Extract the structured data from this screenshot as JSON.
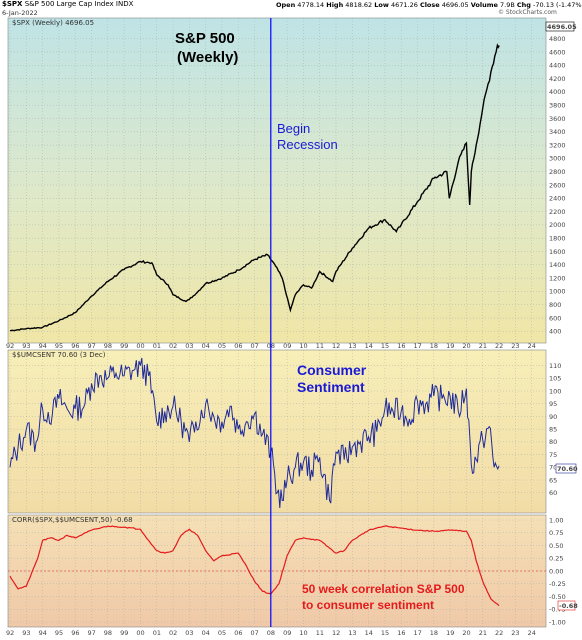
{
  "header": {
    "symbol": "$SPX",
    "name": "S&P 500 Large Cap Index",
    "exchange": "INDX",
    "date": "6-Jan-2022",
    "open_label": "Open",
    "open": "4778.14",
    "high_label": "High",
    "high": "4818.62",
    "low_label": "Low",
    "low": "4671.26",
    "close_label": "Close",
    "close": "4696.05",
    "volume_label": "Volume",
    "volume": "7.9B",
    "chg_label": "Chg",
    "chg": "-70.13 (-1.47%)",
    "credit": "© StockCharts.com"
  },
  "colors": {
    "price_line": "#000000",
    "sentiment_line": "#1f2a9a",
    "corr_line": "#e41a1c",
    "recession_line": "#0000ff",
    "title_blue": "#1a1ad6",
    "corr_text": "#e41a1c"
  },
  "annotations": {
    "title_line1": "S&P 500",
    "title_line2": "(Weekly)",
    "recession_line1": "Begin",
    "recession_line2": "Recession",
    "sentiment_line1": "Consumer",
    "sentiment_line2": "Sentiment",
    "corr_line1": "50 week correlation S&P 500",
    "corr_line2": "to consumer sentiment"
  },
  "chart_data": [
    {
      "type": "line",
      "panel": "price",
      "legend": "$SPX (Weekly) 4696.05",
      "last_value_label": "4696.05",
      "ylim": [
        300,
        4900
      ],
      "yticks": [
        400,
        600,
        800,
        1000,
        1200,
        1400,
        1600,
        1800,
        2000,
        2200,
        2400,
        2600,
        2800,
        3000,
        3200,
        3400,
        3600,
        3800,
        4000,
        4200,
        4400,
        4600,
        4800
      ],
      "series": [
        {
          "x": [
            1992,
            1993,
            1994,
            1995,
            1996,
            1997,
            1998,
            1999,
            2000,
            2000.7,
            2001,
            2001.7,
            2002,
            2002.8,
            2003,
            2003.5,
            2004,
            2005,
            2006,
            2007,
            2007.8,
            2008.3,
            2008.7,
            2009.2,
            2009.5,
            2010,
            2010.5,
            2011,
            2011.8,
            2012,
            2013,
            2014,
            2015,
            2015.7,
            2016,
            2017,
            2018,
            2018.8,
            2018.95,
            2019.5,
            2020,
            2020.2,
            2020.3,
            2020.6,
            2021,
            2021.5,
            2021.9,
            2022.02
          ],
          "y": [
            410,
            440,
            460,
            560,
            680,
            930,
            1150,
            1330,
            1450,
            1430,
            1250,
            1100,
            950,
            850,
            880,
            990,
            1120,
            1200,
            1320,
            1480,
            1550,
            1380,
            1200,
            720,
            950,
            1100,
            1050,
            1300,
            1150,
            1300,
            1650,
            1950,
            2080,
            1900,
            2000,
            2350,
            2700,
            2800,
            2400,
            2950,
            3230,
            2300,
            2800,
            3200,
            3750,
            4300,
            4700,
            4696
          ]
        }
      ]
    },
    {
      "type": "line",
      "panel": "sentiment",
      "legend": "$$UMCSENT 70.60 (3 Dec)",
      "last_value_label": "70.60",
      "ylim": [
        54,
        113
      ],
      "yticks": [
        60,
        65,
        70,
        75,
        80,
        85,
        90,
        95,
        100,
        105,
        110
      ],
      "series": [
        {
          "x": [
            1992,
            1992.5,
            1993,
            1993.6,
            1994,
            1994.6,
            1995,
            1995.6,
            1996,
            1996.6,
            1997,
            1997.5,
            1998,
            1998.5,
            1999,
            1999.5,
            2000,
            2000.5,
            2001,
            2001.5,
            2002,
            2002.5,
            2003,
            2003.4,
            2004,
            2004.5,
            2005,
            2005.5,
            2006,
            2006.5,
            2007,
            2007.5,
            2008,
            2008.4,
            2008.7,
            2009,
            2009.5,
            2010,
            2010.5,
            2011,
            2011.6,
            2012,
            2012.5,
            2013,
            2013.5,
            2014,
            2014.5,
            2015,
            2015.5,
            2016,
            2016.5,
            2017,
            2017.5,
            2018,
            2018.5,
            2019,
            2019.5,
            2020,
            2020.3,
            2020.6,
            2021,
            2021.4,
            2021.7,
            2022
          ],
          "y": [
            70,
            78,
            85,
            80,
            93,
            91,
            97,
            92,
            93,
            95,
            103,
            106,
            105,
            107,
            106,
            108,
            110,
            106,
            88,
            92,
            94,
            88,
            80,
            88,
            95,
            90,
            88,
            94,
            85,
            88,
            91,
            83,
            76,
            60,
            57,
            65,
            70,
            72,
            69,
            74,
            57,
            76,
            73,
            78,
            80,
            82,
            84,
            93,
            92,
            92,
            89,
            96,
            95,
            98,
            97,
            98,
            92,
            101,
            71,
            73,
            81,
            86,
            70,
            70.6
          ]
        }
      ]
    },
    {
      "type": "line",
      "panel": "correlation",
      "legend": "CORR($SPX,$$UMCSENT,50) -0.68",
      "last_value_label": "-0.68",
      "ylim": [
        -1.0,
        1.0
      ],
      "yticks": [
        -1.0,
        -0.75,
        -0.5,
        -0.25,
        0.0,
        0.25,
        0.5,
        0.75,
        1.0
      ],
      "series": [
        {
          "x": [
            1992,
            1992.5,
            1993,
            1993.7,
            1994,
            1994.5,
            1995,
            1995.5,
            1996,
            1997,
            1998,
            1999,
            2000,
            2000.5,
            2001,
            2001.5,
            2002,
            2002.5,
            2003,
            2003.5,
            2004,
            2004.5,
            2005,
            2006,
            2006.5,
            2007,
            2007.5,
            2008,
            2008.5,
            2009,
            2009.5,
            2010,
            2011,
            2012,
            2012.5,
            2013,
            2014,
            2015,
            2016,
            2017,
            2018,
            2019,
            2020,
            2020.3,
            2020.6,
            2021,
            2021.5,
            2022
          ],
          "y": [
            -0.1,
            -0.35,
            -0.3,
            0.25,
            0.6,
            0.65,
            0.6,
            0.7,
            0.65,
            0.8,
            0.88,
            0.86,
            0.82,
            0.6,
            0.4,
            0.35,
            0.4,
            0.7,
            0.82,
            0.7,
            0.4,
            0.2,
            0.3,
            0.35,
            0.1,
            -0.2,
            -0.4,
            -0.45,
            -0.25,
            0.3,
            0.6,
            0.65,
            0.6,
            0.35,
            0.4,
            0.6,
            0.8,
            0.88,
            0.84,
            0.8,
            0.78,
            0.8,
            0.78,
            0.6,
            0.2,
            -0.2,
            -0.55,
            -0.68
          ]
        }
      ]
    }
  ],
  "x_axis": {
    "labels": [
      "92",
      "93",
      "94",
      "95",
      "96",
      "97",
      "98",
      "99",
      "00",
      "01",
      "02",
      "03",
      "04",
      "05",
      "06",
      "07",
      "08",
      "09",
      "10",
      "11",
      "12",
      "13",
      "14",
      "15",
      "16",
      "17",
      "18",
      "19",
      "20",
      "21",
      "22",
      "23",
      "24"
    ],
    "start_year": 1992
  },
  "recession_x": 2008
}
